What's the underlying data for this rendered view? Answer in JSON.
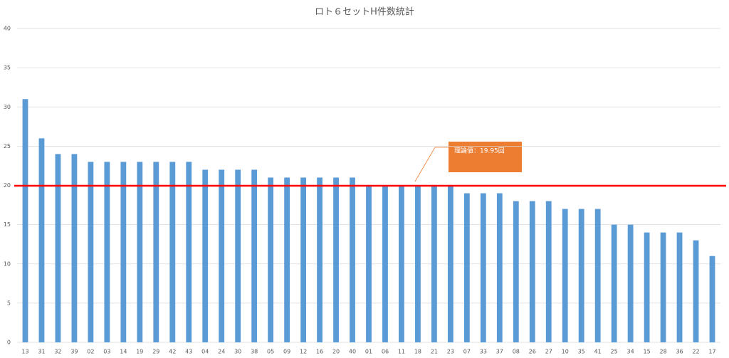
{
  "chart_data": {
    "type": "bar",
    "title": "ロト６セットH件数統計",
    "categories": [
      "13",
      "31",
      "32",
      "39",
      "02",
      "03",
      "14",
      "19",
      "29",
      "42",
      "43",
      "04",
      "24",
      "30",
      "38",
      "05",
      "09",
      "12",
      "16",
      "20",
      "40",
      "01",
      "06",
      "11",
      "18",
      "21",
      "23",
      "07",
      "33",
      "37",
      "08",
      "26",
      "27",
      "10",
      "35",
      "41",
      "25",
      "34",
      "15",
      "28",
      "36",
      "22",
      "17"
    ],
    "values": [
      31,
      26,
      24,
      24,
      23,
      23,
      23,
      23,
      23,
      23,
      23,
      22,
      22,
      22,
      22,
      21,
      21,
      21,
      21,
      21,
      21,
      20,
      20,
      20,
      20,
      20,
      20,
      19,
      19,
      19,
      18,
      18,
      18,
      17,
      17,
      17,
      15,
      15,
      14,
      14,
      14,
      13,
      11
    ],
    "color": "#5b9bd5",
    "ylim": [
      0,
      40
    ],
    "yticks": [
      0,
      5,
      10,
      15,
      20,
      25,
      30,
      35,
      40
    ],
    "grid": true,
    "reference_line": {
      "value": 19.95,
      "color": "#ff0000",
      "label": "理論値：19.95回",
      "label_color": "#ed7d31"
    }
  }
}
